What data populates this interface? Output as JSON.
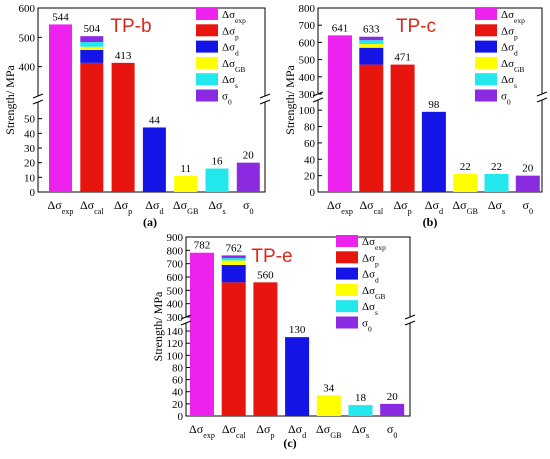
{
  "chart_data": [
    {
      "type": "bar",
      "panel_label": "(a)",
      "title": "TP-b",
      "ylabel": "Strength/ MPa",
      "categories": [
        "Δσ_exp",
        "Δσ_cal",
        "Δσ_p",
        "Δσ_d",
        "Δσ_GB",
        "Δσ_s",
        "σ_0"
      ],
      "values": [
        544,
        504,
        413,
        44,
        11,
        16,
        20
      ],
      "stacked_cal": [
        {
          "component": "σ_0",
          "value": 20
        },
        {
          "component": "Δσ_s",
          "value": 16
        },
        {
          "component": "Δσ_GB",
          "value": 11
        },
        {
          "component": "Δσ_d",
          "value": 44
        },
        {
          "component": "Δσ_p",
          "value": 413
        }
      ],
      "axis_break": {
        "lower_range": [
          0,
          60
        ],
        "upper_range": [
          300,
          600
        ]
      },
      "lower_ticks": [
        "0",
        "10",
        "20",
        "30",
        "40",
        "50"
      ],
      "upper_ticks": [
        "400",
        "500",
        "600"
      ],
      "legend_position": "top-right",
      "legend": [
        "Δσ_exp",
        "Δσ_p",
        "Δσ_d",
        "Δσ_GB",
        "Δσ_s",
        "σ_0"
      ]
    },
    {
      "type": "bar",
      "panel_label": "(b)",
      "title": "TP-c",
      "ylabel": "Strength/ MPa",
      "categories": [
        "Δσ_exp",
        "Δσ_cal",
        "Δσ_p",
        "Δσ_d",
        "Δσ_GB",
        "Δσ_s",
        "σ_0"
      ],
      "values": [
        641,
        633,
        471,
        98,
        22,
        22,
        20
      ],
      "stacked_cal": [
        {
          "component": "Δσ_p",
          "value": 471
        },
        {
          "component": "Δσ_d",
          "value": 98
        },
        {
          "component": "Δσ_GB",
          "value": 22
        },
        {
          "component": "Δσ_s",
          "value": 22
        },
        {
          "component": "σ_0",
          "value": 20
        }
      ],
      "axis_break": {
        "lower_range": [
          0,
          110
        ],
        "upper_range": [
          300,
          800
        ]
      },
      "lower_ticks": [
        "0",
        "20",
        "40",
        "60",
        "80",
        "100"
      ],
      "upper_ticks": [
        "300",
        "400",
        "500",
        "600",
        "700",
        "800"
      ],
      "legend_position": "top-right",
      "legend": [
        "Δσ_exp",
        "Δσ_p",
        "Δσ_d",
        "Δσ_GB",
        "Δσ_s",
        "σ_0"
      ]
    },
    {
      "type": "bar",
      "panel_label": "(c)",
      "title": "TP-e",
      "ylabel": "Strength/ MPa",
      "categories": [
        "Δσ_exp",
        "Δσ_cal",
        "Δσ_p",
        "Δσ_d",
        "Δσ_GB",
        "Δσ_s",
        "σ_0"
      ],
      "values": [
        782,
        762,
        560,
        130,
        34,
        18,
        20
      ],
      "stacked_cal": [
        {
          "component": "Δσ_p",
          "value": 560
        },
        {
          "component": "Δσ_d",
          "value": 130
        },
        {
          "component": "Δσ_GB",
          "value": 34
        },
        {
          "component": "Δσ_s",
          "value": 18
        },
        {
          "component": "σ_0",
          "value": 20
        }
      ],
      "axis_break": {
        "lower_range": [
          0,
          150
        ],
        "upper_range": [
          300,
          900
        ]
      },
      "lower_ticks": [
        "0",
        "20",
        "40",
        "60",
        "80",
        "100",
        "120",
        "140"
      ],
      "upper_ticks": [
        "300",
        "400",
        "500",
        "600",
        "700",
        "800",
        "900"
      ],
      "legend_position": "top-right",
      "legend": [
        "Δσ_exp",
        "Δσ_p",
        "Δσ_d",
        "Δσ_GB",
        "Δσ_s",
        "σ_0"
      ]
    }
  ],
  "colors": {
    "Δσ_exp": "#ee22ee",
    "Δσ_p": "#e8150f",
    "Δσ_d": "#1414e6",
    "Δσ_GB": "#ffff00",
    "Δσ_s": "#22e8ee",
    "σ_0": "#8a2be2",
    "Δσ_cal": "#e8150f"
  }
}
